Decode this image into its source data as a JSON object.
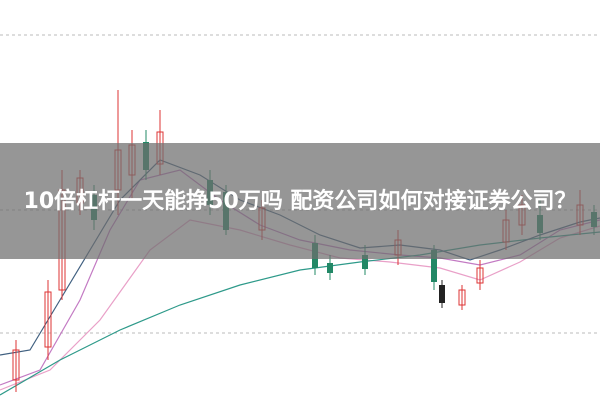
{
  "title": "10倍杠杆一天能挣50万吗 配资公司如何对接证券公司？"
}
